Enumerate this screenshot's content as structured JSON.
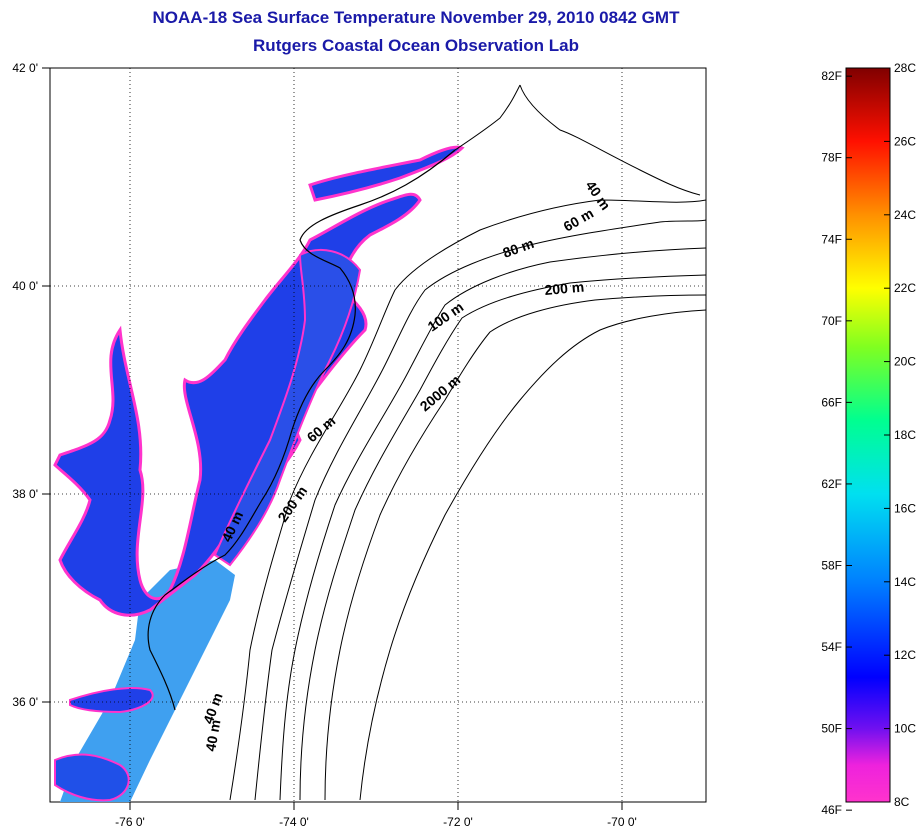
{
  "title_line1": "NOAA-18 Sea Surface Temperature November 29, 2010 0842 GMT",
  "title_line2": "Rutgers Coastal Ocean Observation Lab",
  "map": {
    "lat_labels": [
      "42 0'",
      "40 0'",
      "38 0'",
      "36 0'"
    ],
    "lat_values": [
      42,
      40,
      38,
      36
    ],
    "lon_labels": [
      "-76 0'",
      "-74 0'",
      "-72 0'",
      "-70 0'"
    ],
    "lon_values": [
      -76,
      -74,
      -72,
      -70
    ],
    "lon_range": [
      -77,
      -69
    ],
    "lat_range": [
      35,
      42
    ],
    "grid": "dotted",
    "contour_labels": [
      {
        "text": "40 m",
        "angle": 55
      },
      {
        "text": "60 m",
        "angle": -30
      },
      {
        "text": "80 m",
        "angle": -20
      },
      {
        "text": "200 m",
        "angle": -5
      },
      {
        "text": "100 m",
        "angle": -35
      },
      {
        "text": "2000 m",
        "angle": -40
      },
      {
        "text": "60 m",
        "angle": -40
      },
      {
        "text": "200 m",
        "angle": -55
      },
      {
        "text": "40 m",
        "angle": -65
      },
      {
        "text": "40 m",
        "angle": -80
      },
      {
        "text": "40 m",
        "angle": -70
      }
    ]
  },
  "colorbar": {
    "fahrenheit_labels": [
      "82F",
      "78F",
      "74F",
      "70F",
      "66F",
      "62F",
      "58F",
      "54F",
      "50F",
      "46F"
    ],
    "celsius_labels": [
      "28C",
      "26C",
      "24C",
      "22C",
      "20C",
      "18C",
      "16C",
      "14C",
      "12C",
      "10C",
      "8C"
    ],
    "celsius_min": 8,
    "celsius_max": 28,
    "colors": [
      "#ff33cc",
      "#a020f0",
      "#0000ff",
      "#0080ff",
      "#00e0ff",
      "#00ff80",
      "#80ff00",
      "#ffff00",
      "#ff8000",
      "#ff0000",
      "#800000"
    ]
  }
}
